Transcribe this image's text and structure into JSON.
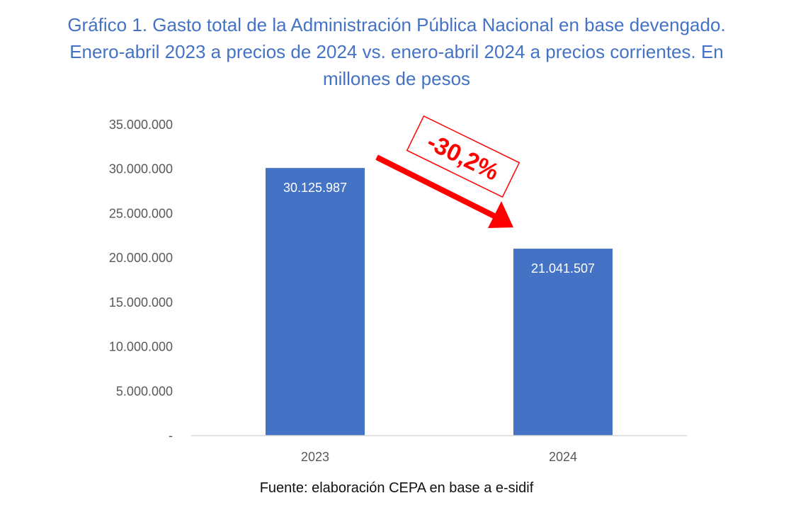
{
  "title_lines": [
    "Gráfico 1. Gasto total de la Administración Pública Nacional en base devengado.",
    "Enero-abril 2023 a precios de 2024 vs. enero-abril 2024 a precios corrientes. En",
    "millones de pesos"
  ],
  "source": "Fuente: elaboración CEPA en base a e-sidif",
  "colors": {
    "title": "#4472c4",
    "bar": "#4472c4",
    "annotation": "#ff0000"
  },
  "chart_data": {
    "type": "bar",
    "title": "Gráfico 1. Gasto total de la Administración Pública Nacional en base devengado. Enero-abril 2023 a precios de 2024 vs. enero-abril 2024 a precios corrientes. En millones de pesos",
    "categories": [
      "2023",
      "2024"
    ],
    "values": [
      30125987,
      21041507
    ],
    "value_labels": [
      "30.125.987",
      "21.041.507"
    ],
    "ylim": [
      0,
      35000000
    ],
    "yticks": [
      {
        "value": 0,
        "label": "-"
      },
      {
        "value": 5000000,
        "label": "5.000.000"
      },
      {
        "value": 10000000,
        "label": "10.000.000"
      },
      {
        "value": 15000000,
        "label": "15.000.000"
      },
      {
        "value": 20000000,
        "label": "20.000.000"
      },
      {
        "value": 25000000,
        "label": "25.000.000"
      },
      {
        "value": 30000000,
        "label": "30.000.000"
      },
      {
        "value": 35000000,
        "label": "35.000.000"
      }
    ],
    "grid": false,
    "legend": "none",
    "annotation": {
      "text": "-30,2%",
      "arrow": "down-right"
    }
  }
}
